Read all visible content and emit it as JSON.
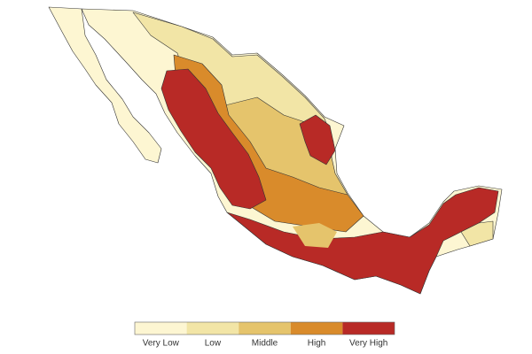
{
  "legend": {
    "items": [
      {
        "label": "Very Low",
        "color": "#fdf6d2"
      },
      {
        "label": "Low",
        "color": "#f2e5a6"
      },
      {
        "label": "Middle",
        "color": "#e5c46c"
      },
      {
        "label": "High",
        "color": "#d98b2b"
      },
      {
        "label": "Very High",
        "color": "#b82a26"
      }
    ]
  }
}
